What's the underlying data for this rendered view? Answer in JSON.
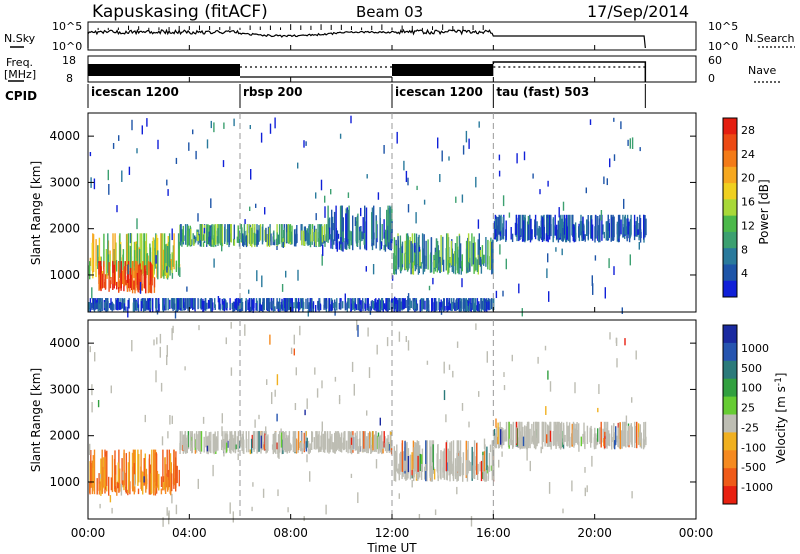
{
  "header": {
    "title": "Kapuskasing (fitACF)",
    "beam": "Beam 03",
    "date": "17/Sep/2014"
  },
  "top_panels": {
    "nsky_label": "N.Sky",
    "nsky_ticks": [
      "10^5",
      "10^0"
    ],
    "nsearch_label": "N.Search",
    "freq_label_top": "Freq.",
    "freq_label_bottom": "[MHz]",
    "freq_ticks": [
      "18",
      "8"
    ],
    "nave_ticks": [
      "60",
      "0"
    ],
    "nave_label": "Nave",
    "cpid_label": "CPID"
  },
  "cpid_segments": [
    {
      "label": "icescan 1200",
      "start": 0,
      "end": 6
    },
    {
      "label": "rbsp 200",
      "start": 6,
      "end": 12
    },
    {
      "label": "icescan 1200",
      "start": 12,
      "end": 16
    },
    {
      "label": "tau (fast) 503",
      "start": 16,
      "end": 22
    }
  ],
  "x_axis": {
    "label": "Time UT",
    "ticks": [
      "00:00",
      "04:00",
      "08:00",
      "12:00",
      "16:00",
      "20:00",
      "00:00"
    ]
  },
  "colors": {
    "power": [
      "#1020d8",
      "#1e55a8",
      "#2a7a9c",
      "#3ca070",
      "#4bb84a",
      "#a8d838",
      "#f0d020",
      "#f6a820",
      "#f37b18",
      "#ec4a14",
      "#e41e10"
    ],
    "velocity": [
      "#1a2aa0",
      "#2655b0",
      "#2b7a7a",
      "#32a040",
      "#66cc33",
      "#bdbdb3",
      "#f0b020",
      "#f58a20",
      "#ef5a18",
      "#e82010"
    ]
  },
  "chart_data": [
    {
      "type": "heatmap",
      "title": "Power",
      "xlabel": "Time UT",
      "ylabel": "Slant Range [km]",
      "xlim": [
        0,
        24
      ],
      "ylim": [
        200,
        4500
      ],
      "yticks": [
        1000,
        2000,
        3000,
        4000
      ],
      "colorbar": {
        "label": "Power [dB]",
        "ticks": [
          "4",
          "8",
          "12",
          "16",
          "20",
          "24",
          "28"
        ],
        "range": [
          0,
          30
        ]
      },
      "features": [
        {
          "t_start": 0.0,
          "t_end": 3.6,
          "range_low": 900,
          "range_high": 1900,
          "level": "medium-high"
        },
        {
          "t_start": 0.4,
          "t_end": 2.6,
          "range_low": 600,
          "range_high": 1300,
          "level": "high"
        },
        {
          "t_start": 3.6,
          "t_end": 9.4,
          "range_low": 1600,
          "range_high": 2100,
          "level": "medium"
        },
        {
          "t_start": 9.4,
          "t_end": 12.0,
          "range_low": 1500,
          "range_high": 2500,
          "level": "low-medium"
        },
        {
          "t_start": 12.0,
          "t_end": 16.0,
          "range_low": 1000,
          "range_high": 1900,
          "level": "medium"
        },
        {
          "t_start": 16.0,
          "t_end": 22.0,
          "range_low": 1700,
          "range_high": 2300,
          "level": "low"
        },
        {
          "t_start": 0.0,
          "t_end": 16.0,
          "range_low": 200,
          "range_high": 500,
          "level": "low"
        }
      ]
    },
    {
      "type": "heatmap",
      "title": "Velocity",
      "xlabel": "Time UT",
      "ylabel": "Slant Range [km]",
      "xlim": [
        0,
        24
      ],
      "ylim": [
        200,
        4500
      ],
      "yticks": [
        1000,
        2000,
        3000,
        4000
      ],
      "colorbar": {
        "label": "Velocity [m s^-1]",
        "ticks": [
          "1000",
          "500",
          "100",
          "25",
          "-25",
          "-100",
          "-500",
          "-1000"
        ],
        "range": [
          -1000,
          1000
        ]
      },
      "features": [
        {
          "t_start": 0.0,
          "t_end": 3.6,
          "range_low": 700,
          "range_high": 1700,
          "level": "-100 to -500"
        },
        {
          "t_start": 3.6,
          "t_end": 12.0,
          "range_low": 1600,
          "range_high": 2100,
          "level": "-25 to 25"
        },
        {
          "t_start": 12.0,
          "t_end": 16.0,
          "range_low": 1000,
          "range_high": 1900,
          "level": "-25 to 25"
        },
        {
          "t_start": 16.0,
          "t_end": 22.0,
          "range_low": 1700,
          "range_high": 2300,
          "level": "-25 to 25"
        }
      ]
    }
  ]
}
